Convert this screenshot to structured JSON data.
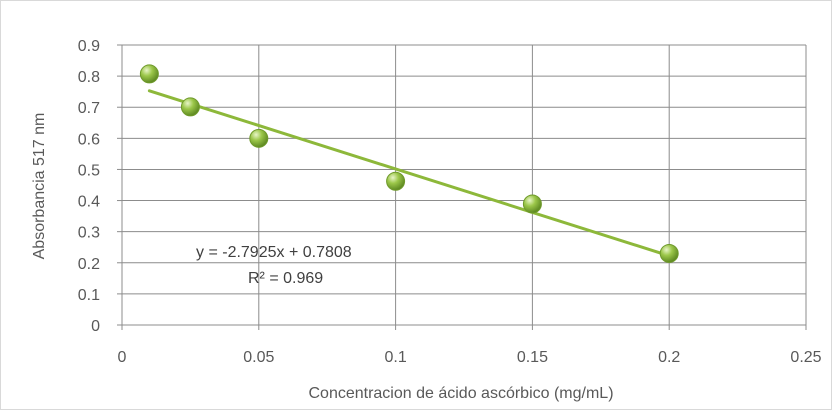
{
  "chart_data": {
    "type": "scatter",
    "x": [
      0.01,
      0.025,
      0.05,
      0.1,
      0.15,
      0.2
    ],
    "y": [
      0.807,
      0.701,
      0.6,
      0.462,
      0.389,
      0.23
    ],
    "xlim": [
      0,
      0.25
    ],
    "ylim": [
      0,
      0.9
    ],
    "x_ticks": [
      "0",
      "0.05",
      "0.1",
      "0.15",
      "0.2",
      "0.25"
    ],
    "y_ticks": [
      "0",
      "0.1",
      "0.2",
      "0.3",
      "0.4",
      "0.5",
      "0.6",
      "0.7",
      "0.8",
      "0.9"
    ],
    "xlabel": "Concentracion de ácido ascórbico (mg/mL)",
    "ylabel": "Absorbancia 517 nm",
    "grid": true,
    "trendline": {
      "type": "linear",
      "slope": -2.7925,
      "intercept": 0.7808,
      "x_range": [
        0.01,
        0.2
      ],
      "equation_label": "y = -2.7925x + 0.7808",
      "r2_label": "R² = 0.969"
    },
    "colors": {
      "marker": "#8db83a",
      "marker_edge": "#6f9a2b",
      "trendline": "#8db83a",
      "grid": "#8c8c8c"
    }
  }
}
